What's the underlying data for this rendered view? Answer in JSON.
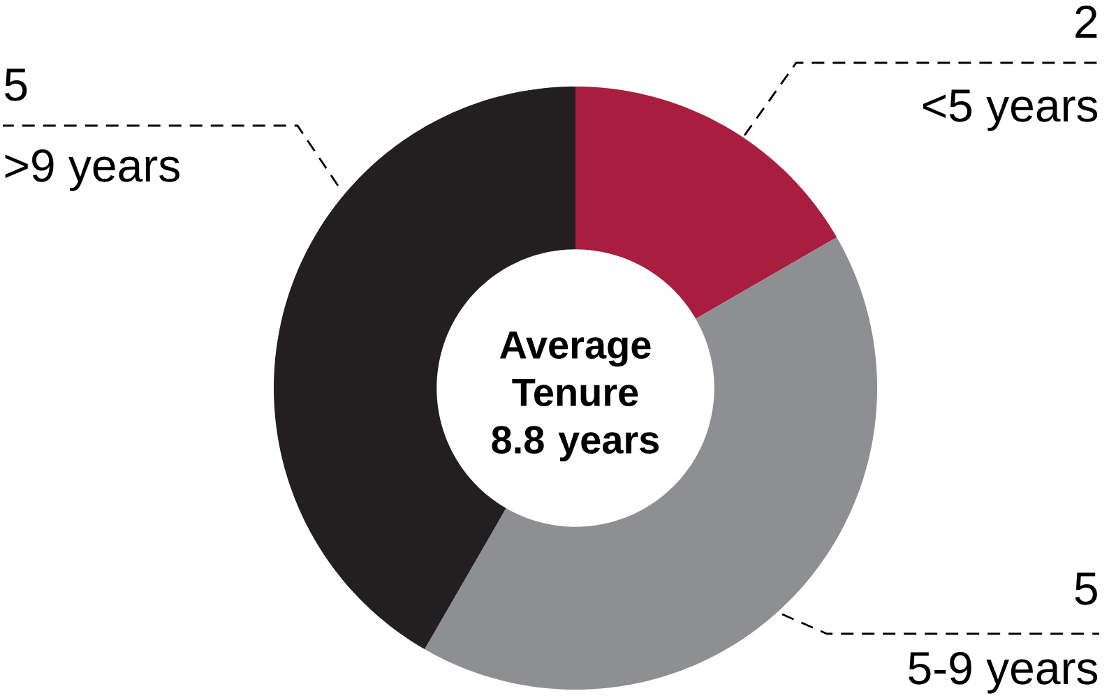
{
  "chart_data": {
    "type": "donut",
    "title": "Average Tenure 8.8 years",
    "categories": [
      "<5 years",
      "5-9 years",
      ">9 years"
    ],
    "values": [
      2,
      5,
      5
    ],
    "colors": [
      "#a91e3f",
      "#8e8f93",
      "#231f20"
    ],
    "data_labels": true
  }
}
